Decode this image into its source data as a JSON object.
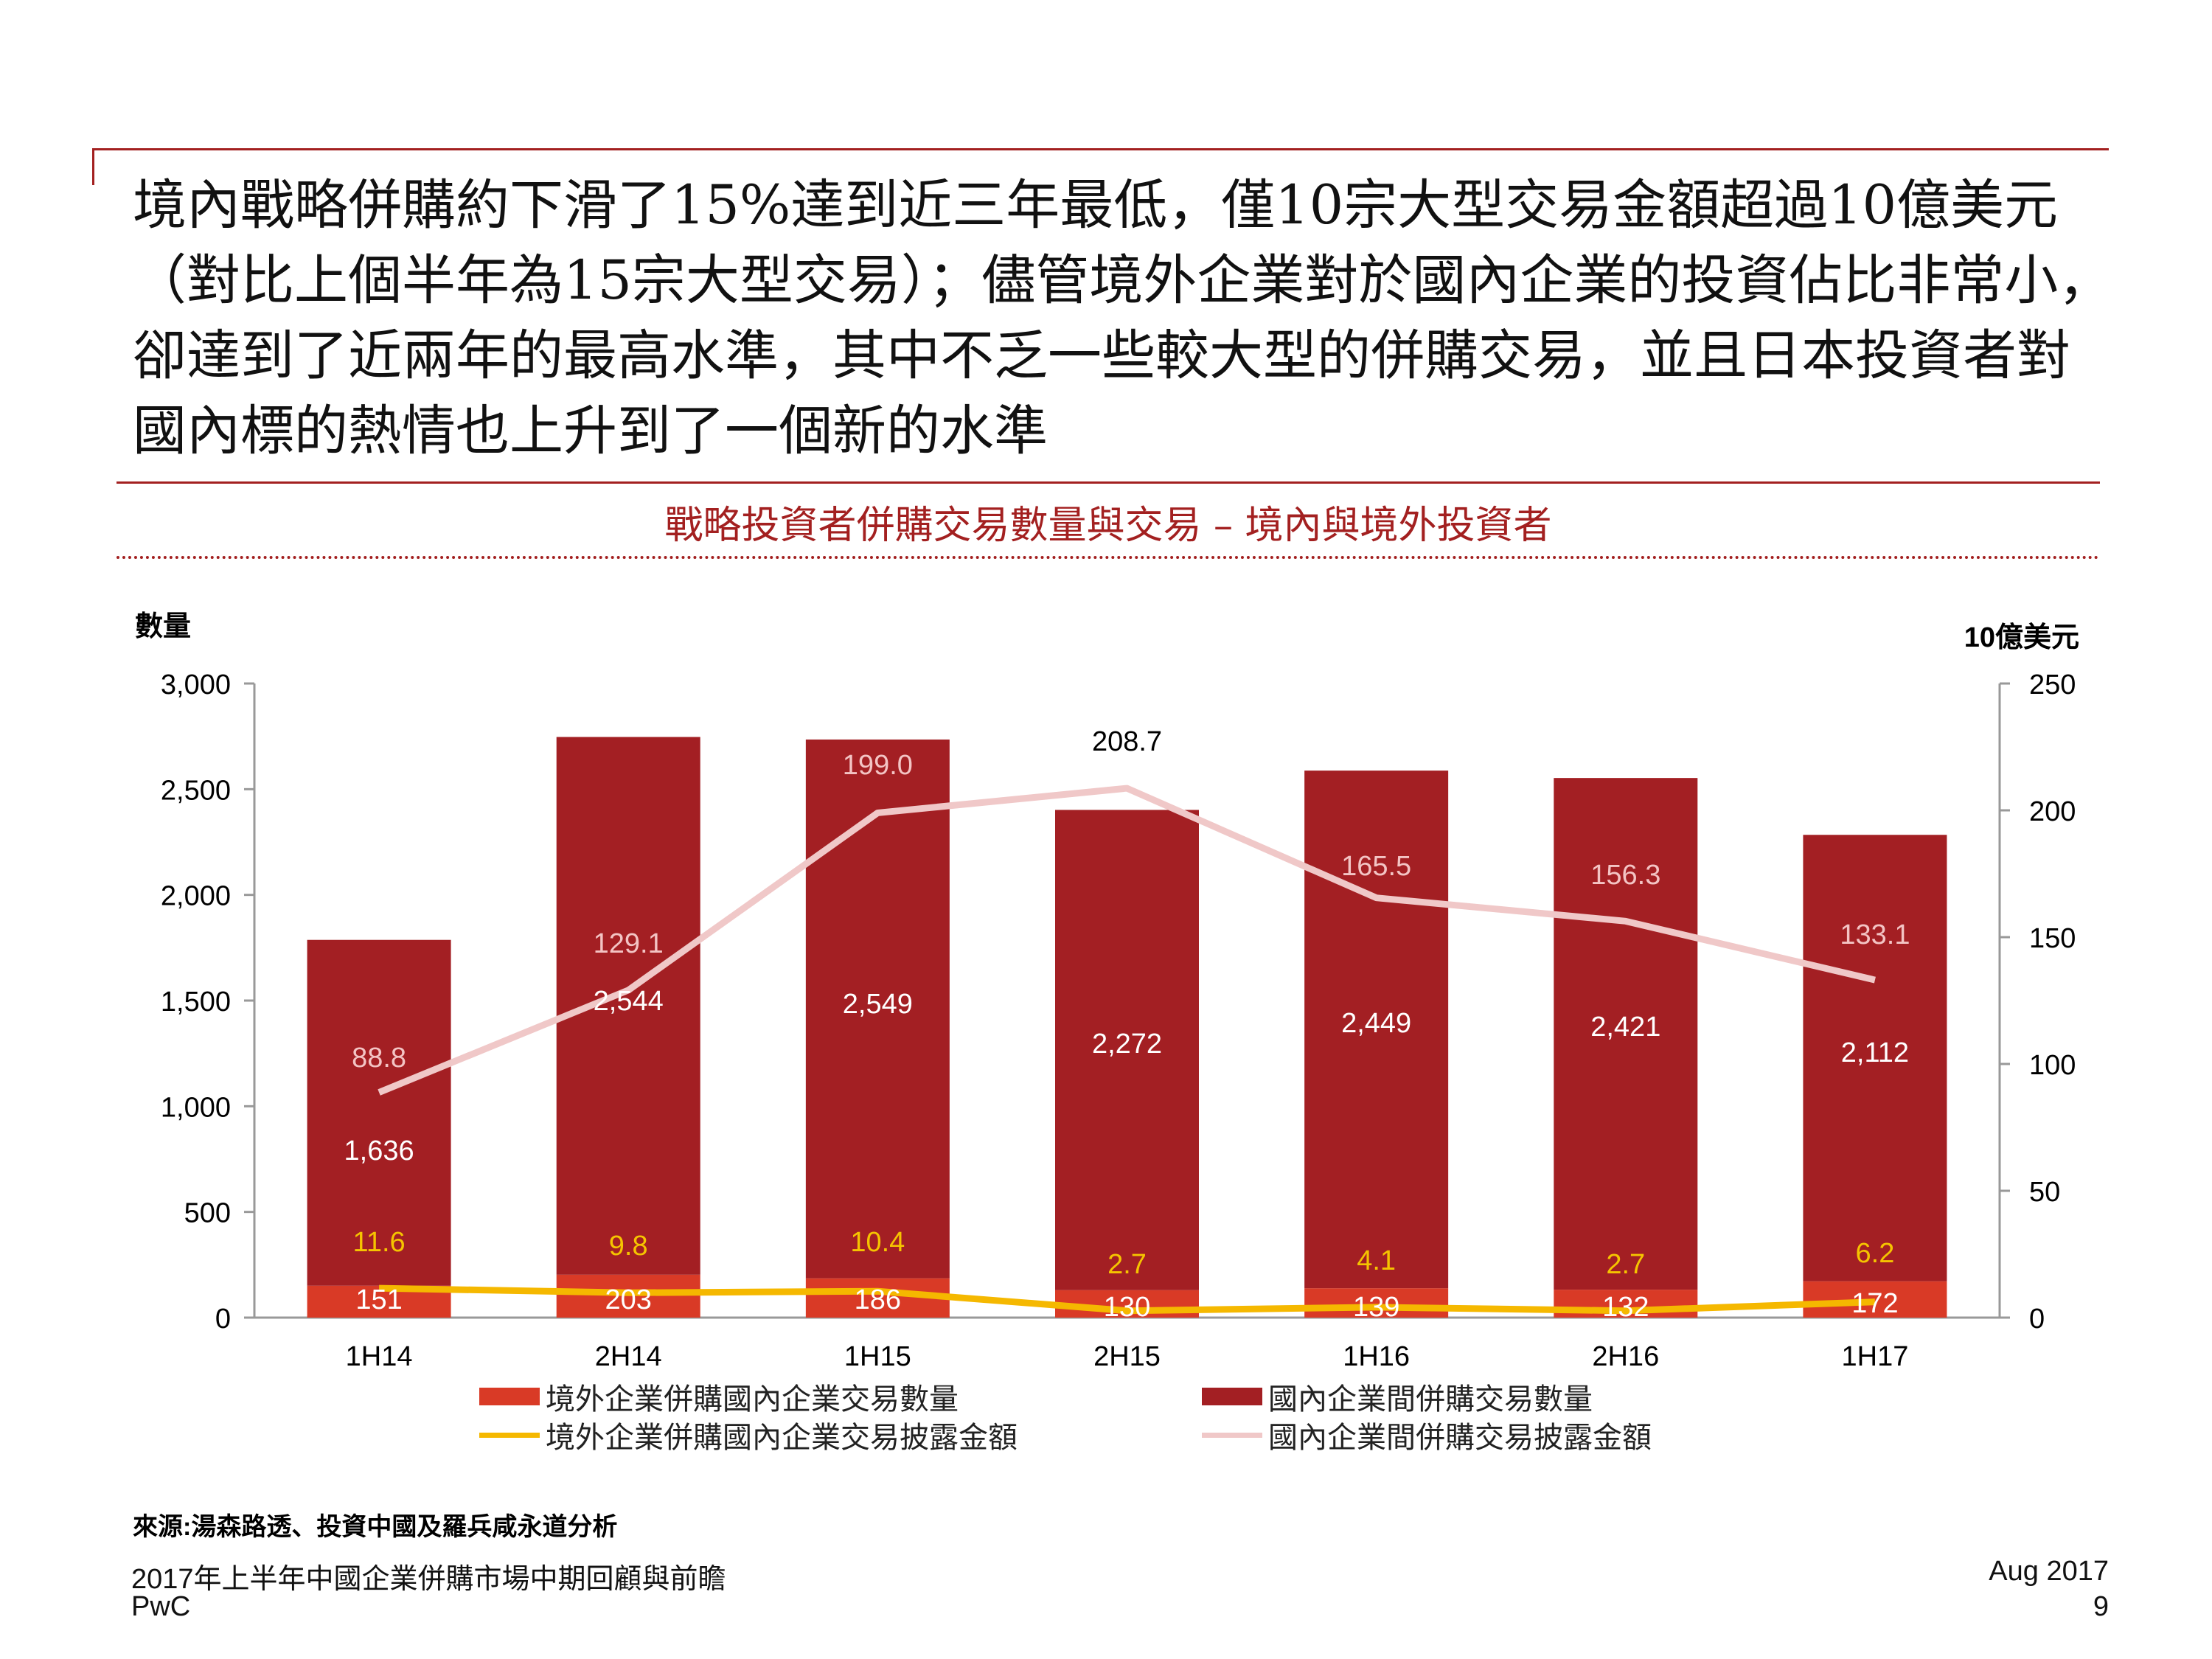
{
  "headline": "境內戰略併購約下滑了15%達到近三年最低，僅10宗大型交易金額超過10億美元（對比上個半年為15宗大型交易）；儘管境外企業對於國內企業的投資佔比非常小，卻達到了近兩年的最高水準，其中不乏一些較大型的併購交易，並且日本投資者對國內標的熱情也上升到了一個新的水準",
  "chart_data": {
    "type": "bar",
    "title": "戰略投資者併購交易數量與交易 – 境內與境外投資者",
    "ylabel_left": "數量",
    "ylabel_right": "10億美元",
    "ylim_left": [
      0,
      3000
    ],
    "ylim_right": [
      0,
      250
    ],
    "yticks_left": [
      "0",
      "500",
      "1,000",
      "1,500",
      "2,000",
      "2,500",
      "3,000"
    ],
    "yticks_right": [
      "0",
      "50",
      "100",
      "150",
      "200",
      "250"
    ],
    "categories": [
      "1H14",
      "2H14",
      "1H15",
      "2H15",
      "1H16",
      "2H16",
      "1H17"
    ],
    "series": [
      {
        "name": "境外企業併購國內企業交易數量",
        "kind": "bar",
        "axis": "left",
        "color": "#d93a26",
        "values": [
          151,
          203,
          186,
          130,
          139,
          132,
          172
        ],
        "labels": [
          "151",
          "203",
          "186",
          "130",
          "139",
          "132",
          "172"
        ]
      },
      {
        "name": "國內企業間併購交易數量",
        "kind": "bar",
        "axis": "left",
        "color": "#a31f23",
        "values": [
          1636,
          2544,
          2549,
          2272,
          2449,
          2421,
          2112
        ],
        "labels": [
          "1,636",
          "2,544",
          "2,549",
          "2,272",
          "2,449",
          "2,421",
          "2,112"
        ]
      },
      {
        "name": "境外企業併購國內企業交易披露金額",
        "kind": "line",
        "axis": "right",
        "color": "#f5b800",
        "values": [
          11.6,
          9.8,
          10.4,
          2.7,
          4.1,
          2.7,
          6.2
        ],
        "labels": [
          "11.6",
          "9.8",
          "10.4",
          "2.7",
          "4.1",
          "2.7",
          "6.2"
        ]
      },
      {
        "name": "國內企業間併購交易披露金額",
        "kind": "line",
        "axis": "right",
        "color": "#f0c8c8",
        "values": [
          88.8,
          129.1,
          199.0,
          208.7,
          165.5,
          156.3,
          133.1
        ],
        "labels": [
          "88.8",
          "129.1",
          "199.0",
          "208.7",
          "165.5",
          "156.3",
          "133.1"
        ]
      }
    ]
  },
  "source": "來源:湯森路透、投資中國及羅兵咸永道分析",
  "footer": {
    "report_title": "2017年上半年中國企業併購市場中期回顧與前瞻",
    "company": "PwC",
    "date": "Aug 2017",
    "page": "9"
  }
}
